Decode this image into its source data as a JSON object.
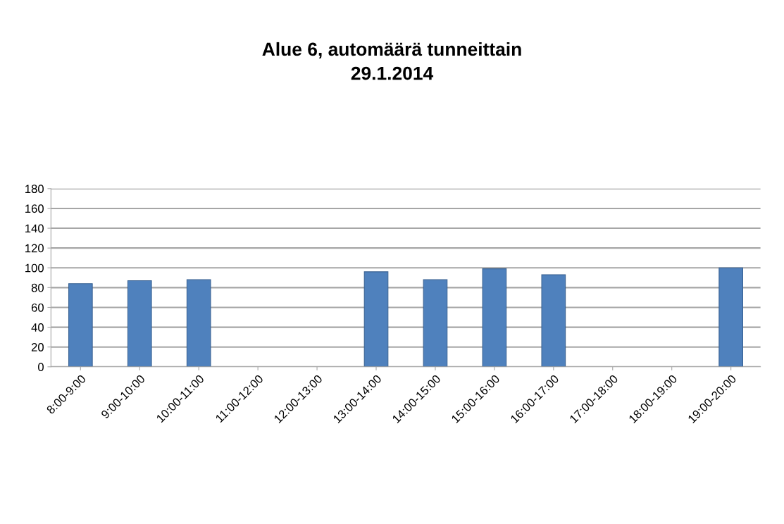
{
  "chart_data": {
    "type": "bar",
    "title": "Alue 6, automäärä tunneittain\n29.1.2014",
    "categories": [
      "8:00-9:00",
      "9:00-10:00",
      "10:00-11:00",
      "11:00-12:00",
      "12:00-13:00",
      "13:00-14:00",
      "14:00-15:00",
      "15:00-16:00",
      "16:00-17:00",
      "17:00-18:00",
      "18:00-19:00",
      "19:00-20:00"
    ],
    "values": [
      84,
      87,
      88,
      null,
      null,
      96,
      88,
      99,
      93,
      null,
      null,
      100
    ],
    "color": "#4f81bd",
    "ylim": [
      0,
      180
    ],
    "yticks": [
      0,
      20,
      40,
      60,
      80,
      100,
      120,
      140,
      160,
      180
    ],
    "grid": "y"
  }
}
